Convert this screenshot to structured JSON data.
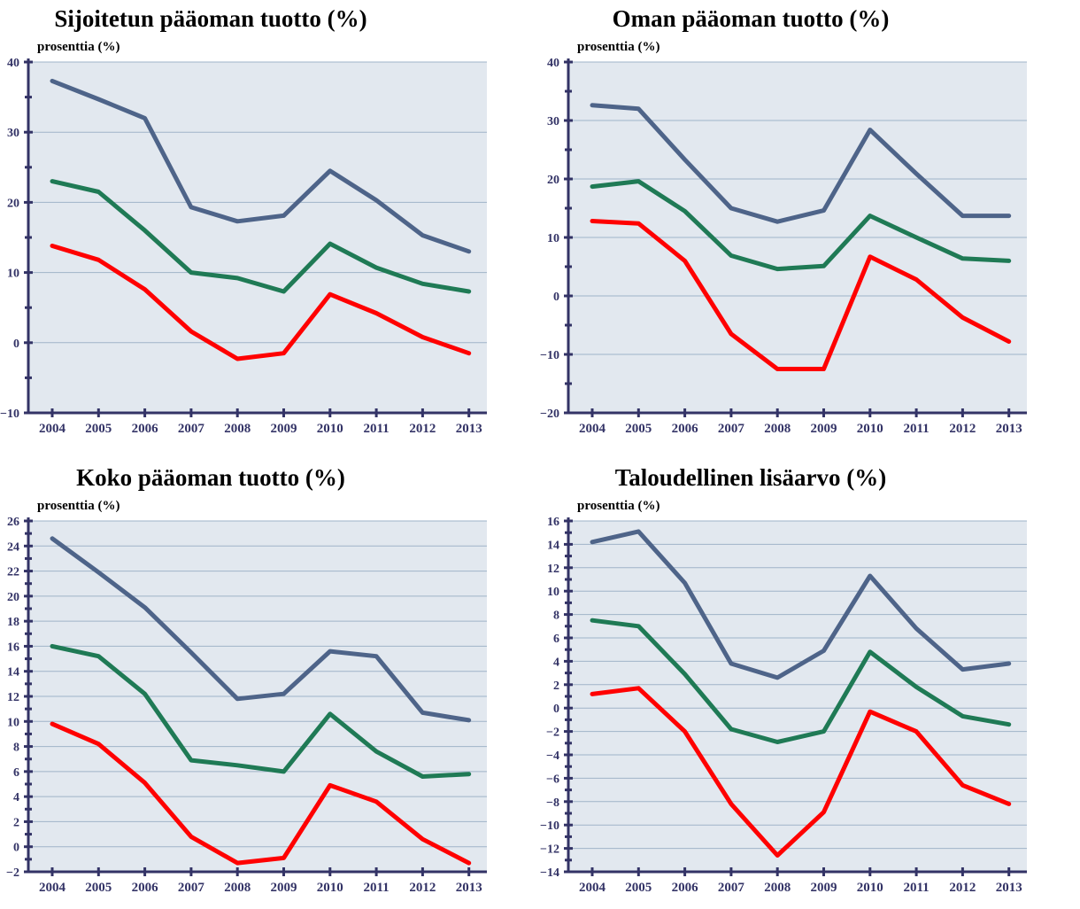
{
  "colors": {
    "plot_bg": "#e2e8ef",
    "grid": "#9fb3c8",
    "axis": "#333366",
    "top": "#4e6489",
    "mid": "#1f7a55",
    "low": "#ff0000"
  },
  "chart_data": [
    {
      "type": "line",
      "title": "Sijoitetun pääoman tuotto (%)",
      "ylabel": "prosenttia (%)",
      "categories": [
        "2004",
        "2005",
        "2006",
        "2007",
        "2008",
        "2009",
        "2010",
        "2011",
        "2012",
        "2013"
      ],
      "ylim": [
        -10,
        40
      ],
      "yticks": [
        -10,
        0,
        10,
        20,
        30,
        40
      ],
      "grid": true,
      "series": [
        {
          "color": "#4e6489",
          "values": [
            37.3,
            34.7,
            32.0,
            19.3,
            17.3,
            18.1,
            24.5,
            20.3,
            15.3,
            13.0
          ]
        },
        {
          "color": "#1f7a55",
          "values": [
            23.0,
            21.5,
            16.0,
            10.0,
            9.2,
            7.3,
            14.1,
            10.7,
            8.4,
            7.3
          ]
        },
        {
          "color": "#ff0000",
          "values": [
            13.8,
            11.8,
            7.6,
            1.6,
            -2.3,
            -1.5,
            6.9,
            4.2,
            0.8,
            -1.5
          ]
        }
      ]
    },
    {
      "type": "line",
      "title": "Oman pääoman tuotto (%)",
      "ylabel": "prosenttia (%)",
      "categories": [
        "2004",
        "2005",
        "2006",
        "2007",
        "2008",
        "2009",
        "2010",
        "2011",
        "2012",
        "2013"
      ],
      "ylim": [
        -20,
        40
      ],
      "yticks": [
        -20,
        -10,
        0,
        10,
        20,
        30,
        40
      ],
      "grid": true,
      "series": [
        {
          "color": "#4e6489",
          "values": [
            32.6,
            32.0,
            23.3,
            15.0,
            12.7,
            14.6,
            28.4,
            20.9,
            13.7,
            13.7
          ]
        },
        {
          "color": "#1f7a55",
          "values": [
            18.7,
            19.6,
            14.5,
            6.9,
            4.6,
            5.1,
            13.7,
            10.0,
            6.4,
            6.0
          ]
        },
        {
          "color": "#ff0000",
          "values": [
            12.8,
            12.4,
            6.0,
            -6.5,
            -12.5,
            -12.5,
            6.7,
            2.8,
            -3.7,
            -7.8
          ]
        }
      ]
    },
    {
      "type": "line",
      "title": "Koko pääoman tuotto (%)",
      "ylabel": "prosenttia (%)",
      "categories": [
        "2004",
        "2005",
        "2006",
        "2007",
        "2008",
        "2009",
        "2010",
        "2011",
        "2012",
        "2013"
      ],
      "ylim": [
        -2,
        26
      ],
      "yticks": [
        -2,
        0,
        2,
        4,
        6,
        8,
        10,
        12,
        14,
        16,
        18,
        20,
        22,
        24,
        26
      ],
      "grid": true,
      "series": [
        {
          "color": "#4e6489",
          "values": [
            24.6,
            21.9,
            19.1,
            15.5,
            11.8,
            12.2,
            15.6,
            15.2,
            10.7,
            10.1
          ]
        },
        {
          "color": "#1f7a55",
          "values": [
            16.0,
            15.2,
            12.2,
            6.9,
            6.5,
            6.0,
            10.6,
            7.6,
            5.6,
            5.8
          ]
        },
        {
          "color": "#ff0000",
          "values": [
            9.8,
            8.2,
            5.1,
            0.8,
            -1.3,
            -0.9,
            4.9,
            3.6,
            0.6,
            -1.3
          ]
        }
      ]
    },
    {
      "type": "line",
      "title": "Taloudellinen lisäarvo (%)",
      "ylabel": "prosenttia (%)",
      "categories": [
        "2004",
        "2005",
        "2006",
        "2007",
        "2008",
        "2009",
        "2010",
        "2011",
        "2012",
        "2013"
      ],
      "ylim": [
        -14,
        16
      ],
      "yticks": [
        -14,
        -12,
        -10,
        -8,
        -6,
        -4,
        -2,
        0,
        2,
        4,
        6,
        8,
        10,
        12,
        14,
        16
      ],
      "grid": true,
      "series": [
        {
          "color": "#4e6489",
          "values": [
            14.2,
            15.1,
            10.7,
            3.8,
            2.6,
            4.9,
            11.3,
            6.8,
            3.3,
            3.8
          ]
        },
        {
          "color": "#1f7a55",
          "values": [
            7.5,
            7.0,
            2.9,
            -1.8,
            -2.9,
            -2.0,
            4.8,
            1.8,
            -0.7,
            -1.4
          ]
        },
        {
          "color": "#ff0000",
          "values": [
            1.2,
            1.7,
            -2.0,
            -8.2,
            -12.6,
            -8.9,
            -0.3,
            -2.0,
            -6.6,
            -8.2
          ]
        }
      ]
    }
  ]
}
